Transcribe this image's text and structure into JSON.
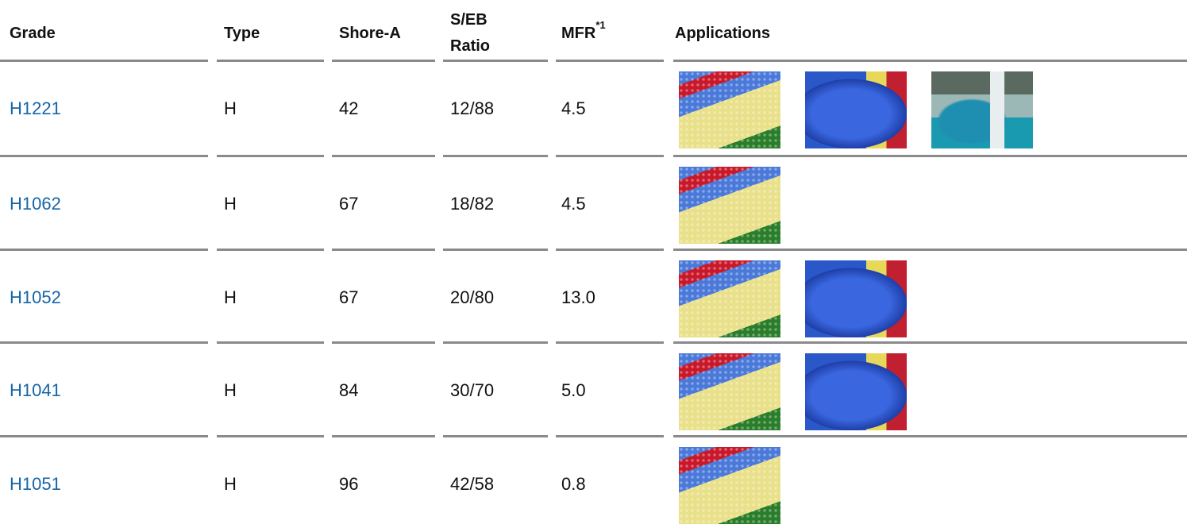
{
  "table": {
    "header": [
      "Grade",
      "Type",
      "Shore-A",
      [
        "S/EB",
        "Ratio"
      ],
      {
        "text": "MFR",
        "note": "*1"
      },
      "Applications"
    ],
    "rows": [
      [
        "H1221",
        "H",
        "42",
        "12/88",
        "4.5"
      ],
      [
        "H1062",
        "H",
        "67",
        "18/82",
        "4.5"
      ],
      [
        "H1052",
        "H",
        "67",
        "20/80",
        "13.0"
      ],
      [
        "H1041",
        "H",
        "84",
        "30/70",
        "5.0"
      ],
      [
        "H1051",
        "H",
        "96",
        "42/58",
        "0.8"
      ]
    ]
  }
}
